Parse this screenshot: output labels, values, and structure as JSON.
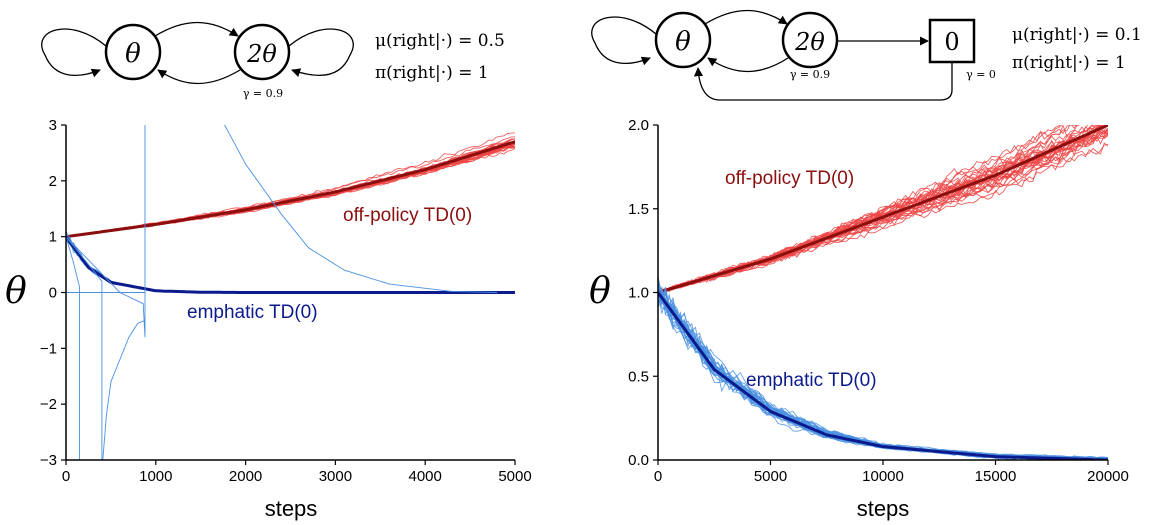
{
  "left": {
    "diagram": {
      "states": [
        "θ",
        "2θ"
      ],
      "gamma_label": "γ = 0.9",
      "policy_lines": [
        "μ(right|·) = 0.5",
        "π(right|·) = 1"
      ]
    },
    "y_symbol": "θ",
    "xlabel": "steps",
    "annotations": {
      "offpolicy": "off-policy TD(0)",
      "emphatic": "emphatic TD(0)"
    },
    "colors": {
      "offpolicy_runs": "#ef4444",
      "offpolicy_mean": "#8b0f0f",
      "emphatic_runs": "#4a90e2",
      "emphatic_mean": "#0b1a8c"
    }
  },
  "right": {
    "diagram": {
      "states": [
        "θ",
        "2θ",
        "0"
      ],
      "gamma_labels": [
        "γ = 0.9",
        "γ = 0"
      ],
      "policy_lines": [
        "μ(right|·) = 0.1",
        "π(right|·) = 1"
      ]
    },
    "y_symbol": "θ",
    "xlabel": "steps",
    "annotations": {
      "offpolicy": "off-policy TD(0)",
      "emphatic": "emphatic TD(0)"
    },
    "colors": {
      "offpolicy_runs": "#ef4444",
      "offpolicy_mean": "#8b0f0f",
      "emphatic_runs": "#4a90e2",
      "emphatic_mean": "#0b1a8c"
    }
  },
  "chart_data": [
    {
      "type": "line",
      "xlabel": "steps",
      "ylabel": "θ",
      "xlim": [
        0,
        5000
      ],
      "ylim": [
        -3,
        3
      ],
      "xticks": [
        "0",
        "1000",
        "2000",
        "3000",
        "4000",
        "5000"
      ],
      "yticks": [
        "−3",
        "−2",
        "−1",
        "0",
        "1",
        "2",
        "3"
      ],
      "series": [
        {
          "name": "off-policy TD(0)",
          "x": [
            0,
            1000,
            2000,
            3000,
            4000,
            5000
          ],
          "y": [
            1.0,
            1.22,
            1.48,
            1.8,
            2.2,
            2.7
          ]
        },
        {
          "name": "emphatic TD(0)",
          "x": [
            0,
            250,
            500,
            1000,
            1500,
            2000,
            5000
          ],
          "y": [
            1.0,
            0.45,
            0.18,
            0.03,
            0.005,
            0.0,
            0.0
          ]
        }
      ]
    },
    {
      "type": "line",
      "xlabel": "steps",
      "ylabel": "θ",
      "xlim": [
        0,
        20000
      ],
      "ylim": [
        0,
        2
      ],
      "xticks": [
        "0",
        "5000",
        "10000",
        "15000",
        "20000"
      ],
      "yticks": [
        "0.0",
        "0.5",
        "1.0",
        "1.5",
        "2.0"
      ],
      "series": [
        {
          "name": "off-policy TD(0)",
          "x": [
            0,
            5000,
            10000,
            15000,
            20000
          ],
          "y": [
            1.0,
            1.2,
            1.45,
            1.7,
            2.0
          ]
        },
        {
          "name": "emphatic TD(0)",
          "x": [
            0,
            2500,
            5000,
            7500,
            10000,
            15000,
            20000
          ],
          "y": [
            1.0,
            0.54,
            0.29,
            0.15,
            0.08,
            0.02,
            0.0
          ]
        }
      ]
    }
  ]
}
